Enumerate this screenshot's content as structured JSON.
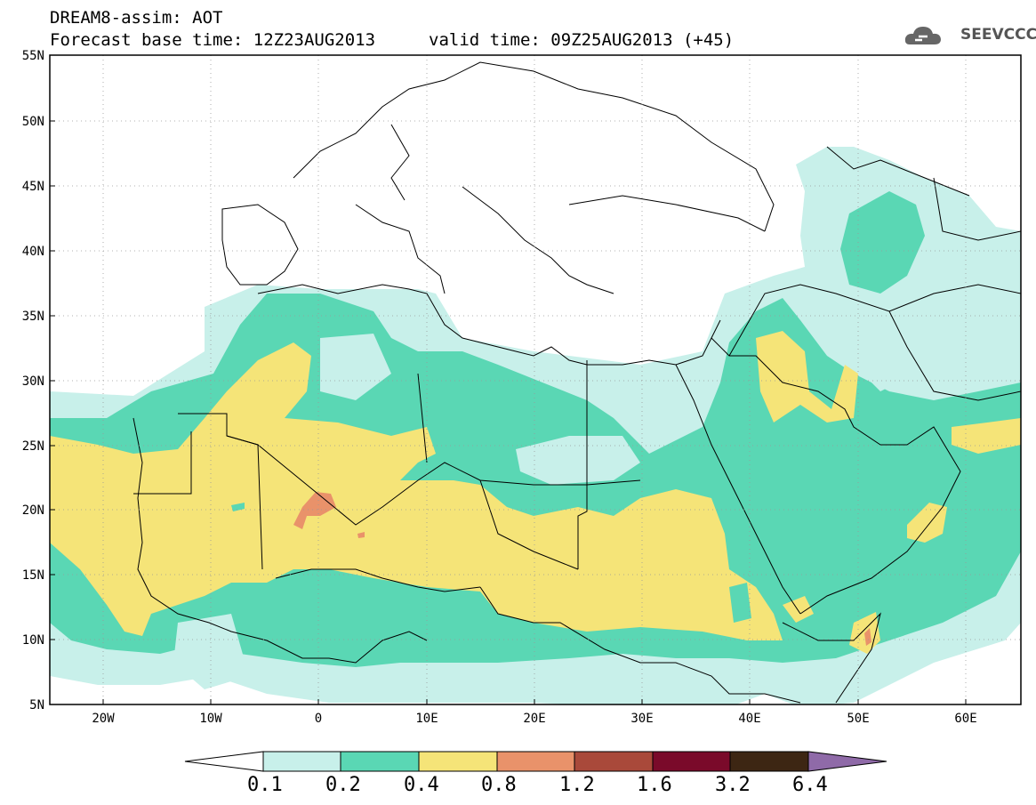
{
  "header": {
    "title_line1": "DREAM8-assim: AOT",
    "title_line2_left": "Forecast base time: 12Z23AUG2013",
    "title_line2_right": "valid time: 09Z25AUG2013 (+45)",
    "logo_text": "SEEVCCC"
  },
  "map": {
    "lat_ticks": [
      "55N",
      "50N",
      "45N",
      "40N",
      "35N",
      "30N",
      "25N",
      "20N",
      "15N",
      "10N",
      "5N"
    ],
    "lon_ticks": [
      "20W",
      "10W",
      "0",
      "10E",
      "20E",
      "30E",
      "40E",
      "50E",
      "60E"
    ],
    "lat_range": [
      5,
      55
    ],
    "lon_range": [
      -25,
      65
    ],
    "grid": true
  },
  "colorbar": {
    "labels": [
      "0.1",
      "0.2",
      "0.4",
      "0.8",
      "1.2",
      "1.6",
      "3.2",
      "6.4"
    ],
    "colors": [
      "#ffffff",
      "#c8f0ea",
      "#5ad7b4",
      "#f5e478",
      "#e9926a",
      "#a9493a",
      "#7a0a2a",
      "#3d2613",
      "#8f6aa8"
    ]
  },
  "colors": {
    "c1": "#c8f0ea",
    "c2": "#5ad7b4",
    "c3": "#f5e478",
    "c4": "#e9926a",
    "c5": "#a9493a"
  }
}
